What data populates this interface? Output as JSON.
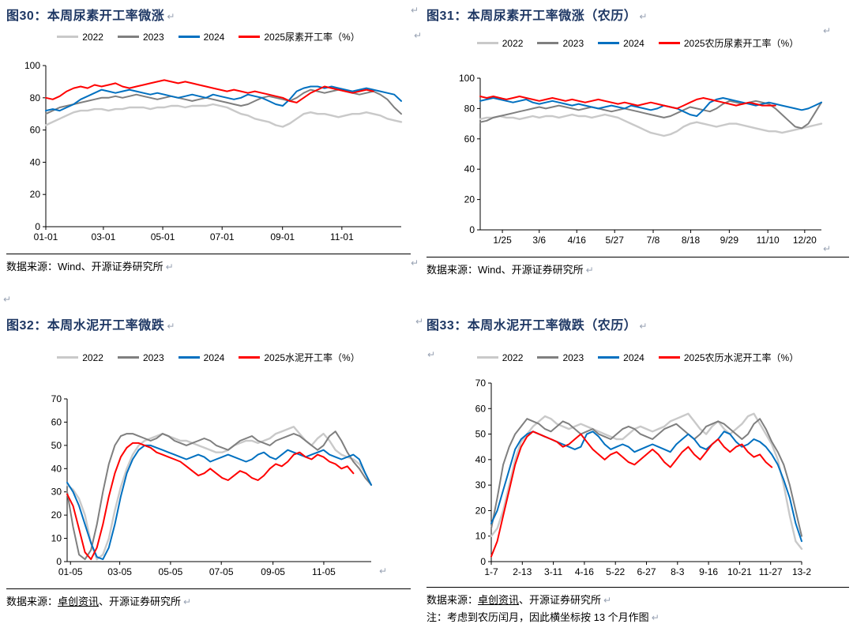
{
  "marks": {
    "return": "↵"
  },
  "colors": {
    "title": "#1f3864",
    "axis": "#000000",
    "series_2022": "#c9c9c9",
    "series_2023": "#7f7f7f",
    "series_2024": "#0070c0",
    "series_2025": "#ff0000"
  },
  "chart_data": [
    {
      "type": "line",
      "title": "图30：本周尿素开工率微涨",
      "grid": false,
      "legend_position": "top",
      "ylim": [
        0,
        100
      ],
      "yticks": [
        0,
        20,
        40,
        60,
        80,
        100
      ],
      "n": 52,
      "xlabels": [
        "01-01",
        "03-01",
        "05-01",
        "07-01",
        "09-01",
        "11-01"
      ],
      "xlabel_pos": [
        0,
        0.162,
        0.329,
        0.496,
        0.666,
        0.833
      ],
      "source": {
        "prefix": "数据来源：",
        "link": "",
        "rest": "Wind、开源证券研究所"
      },
      "series": [
        {
          "name": "2022",
          "color": "#c9c9c9",
          "width": 2.4,
          "values": [
            63,
            65,
            67,
            69,
            71,
            72,
            72,
            73,
            73,
            72,
            73,
            73,
            74,
            74,
            74,
            73,
            74,
            74,
            75,
            75,
            74,
            75,
            75,
            75,
            76,
            75,
            74,
            72,
            70,
            69,
            67,
            66,
            65,
            63,
            62,
            64,
            67,
            70,
            71,
            70,
            70,
            69,
            68,
            69,
            70,
            70,
            71,
            70,
            69,
            67,
            66,
            65
          ]
        },
        {
          "name": "2023",
          "color": "#7f7f7f",
          "width": 2,
          "values": [
            70,
            72,
            74,
            75,
            76,
            77,
            78,
            79,
            80,
            80,
            81,
            80,
            81,
            82,
            81,
            80,
            79,
            80,
            81,
            80,
            79,
            78,
            79,
            80,
            79,
            78,
            77,
            76,
            75,
            76,
            78,
            80,
            81,
            80,
            79,
            78,
            80,
            83,
            85,
            84,
            83,
            84,
            85,
            84,
            83,
            82,
            83,
            84,
            82,
            79,
            74,
            70
          ]
        },
        {
          "name": "2024",
          "color": "#0070c0",
          "width": 2,
          "values": [
            72,
            73,
            72,
            74,
            76,
            79,
            81,
            83,
            85,
            84,
            83,
            84,
            85,
            84,
            83,
            82,
            83,
            82,
            81,
            80,
            81,
            82,
            81,
            80,
            82,
            81,
            80,
            79,
            80,
            82,
            81,
            80,
            78,
            76,
            75,
            79,
            84,
            86,
            87,
            87,
            86,
            87,
            86,
            85,
            84,
            85,
            86,
            85,
            84,
            83,
            82,
            78
          ]
        },
        {
          "name": "2025尿素开工率（%）",
          "color": "#ff0000",
          "width": 2,
          "values": [
            80,
            79,
            81,
            84,
            86,
            87,
            86,
            88,
            87,
            88,
            89,
            87,
            86,
            87,
            88,
            89,
            90,
            91,
            90,
            89,
            90,
            89,
            88,
            87,
            86,
            85,
            84,
            85,
            84,
            83,
            84,
            83,
            82,
            81,
            80,
            78,
            77,
            80,
            83,
            85,
            87,
            86,
            85,
            84,
            83,
            84,
            85,
            84
          ]
        }
      ]
    },
    {
      "type": "line",
      "title": "图31：本周尿素开工率微涨（农历）",
      "grid": false,
      "legend_position": "top",
      "ylim": [
        0,
        100
      ],
      "yticks": [
        0,
        20,
        40,
        60,
        80,
        100
      ],
      "n": 53,
      "xlabels": [
        "1/25",
        "3/6",
        "4/16",
        "5/27",
        "7/8",
        "8/18",
        "9/29",
        "11/10",
        "12/20"
      ],
      "xlabel_pos": [
        0.065,
        0.173,
        0.283,
        0.394,
        0.507,
        0.617,
        0.73,
        0.843,
        0.951
      ],
      "source": {
        "prefix": "数据来源：",
        "link": "",
        "rest": "Wind、开源证券研究所"
      },
      "series": [
        {
          "name": "2022",
          "color": "#c9c9c9",
          "width": 2.4,
          "values": [
            73,
            74,
            74,
            75,
            74,
            74,
            73,
            74,
            75,
            74,
            75,
            75,
            74,
            75,
            76,
            75,
            75,
            74,
            75,
            76,
            75,
            74,
            72,
            70,
            68,
            66,
            64,
            63,
            62,
            63,
            65,
            68,
            70,
            71,
            70,
            69,
            68,
            69,
            70,
            70,
            69,
            68,
            67,
            66,
            65,
            65,
            64,
            65,
            66,
            67,
            68,
            69,
            70
          ]
        },
        {
          "name": "2023",
          "color": "#7f7f7f",
          "width": 2,
          "values": [
            71,
            72,
            74,
            75,
            76,
            77,
            78,
            79,
            80,
            81,
            80,
            81,
            82,
            81,
            80,
            79,
            80,
            81,
            80,
            79,
            78,
            79,
            80,
            79,
            78,
            77,
            76,
            75,
            74,
            75,
            77,
            79,
            81,
            80,
            79,
            78,
            80,
            83,
            85,
            84,
            83,
            84,
            85,
            84,
            83,
            80,
            76,
            72,
            68,
            67,
            70,
            77,
            84
          ]
        },
        {
          "name": "2024",
          "color": "#0070c0",
          "width": 2,
          "values": [
            85,
            86,
            87,
            86,
            85,
            84,
            85,
            86,
            84,
            83,
            84,
            85,
            84,
            83,
            82,
            83,
            82,
            81,
            80,
            81,
            82,
            81,
            80,
            82,
            81,
            80,
            79,
            80,
            82,
            81,
            80,
            78,
            76,
            75,
            79,
            84,
            86,
            87,
            86,
            85,
            84,
            83,
            82,
            83,
            84,
            83,
            82,
            81,
            80,
            79,
            80,
            82,
            84
          ]
        },
        {
          "name": "2025农历尿素开工率（%）",
          "color": "#ff0000",
          "width": 2,
          "values": [
            88,
            87,
            88,
            87,
            86,
            87,
            88,
            87,
            86,
            85,
            86,
            87,
            86,
            85,
            86,
            85,
            84,
            85,
            86,
            85,
            84,
            83,
            84,
            83,
            82,
            83,
            84,
            83,
            82,
            81,
            80,
            82,
            84,
            86,
            87,
            86,
            85,
            84,
            83,
            82,
            83,
            84,
            83,
            82,
            82,
            82
          ]
        }
      ]
    },
    {
      "type": "line",
      "title": "图32：本周水泥开工率微跌",
      "grid": false,
      "legend_position": "top",
      "ylim": [
        0,
        70
      ],
      "yticks": [
        0,
        10,
        20,
        30,
        40,
        50,
        60,
        70
      ],
      "n": 52,
      "xlabels": [
        "01-05",
        "03-05",
        "05-05",
        "07-05",
        "09-05",
        "11-05"
      ],
      "xlabel_pos": [
        0.011,
        0.173,
        0.34,
        0.507,
        0.677,
        0.844
      ],
      "source": {
        "prefix": "数据来源：",
        "link": "卓创资讯",
        "rest": "、开源证券研究所"
      },
      "series": [
        {
          "name": "2022",
          "color": "#c9c9c9",
          "width": 2.4,
          "values": [
            33,
            31,
            27,
            20,
            8,
            1,
            3,
            10,
            22,
            32,
            40,
            46,
            50,
            52,
            53,
            54,
            55,
            54,
            53,
            52,
            52,
            51,
            50,
            49,
            48,
            47,
            47,
            48,
            50,
            51,
            52,
            52,
            51,
            52,
            53,
            55,
            56,
            57,
            58,
            55,
            52,
            50,
            53,
            55,
            52,
            48,
            46,
            45,
            44,
            42,
            38,
            33
          ]
        },
        {
          "name": "2023",
          "color": "#7f7f7f",
          "width": 2,
          "values": [
            30,
            15,
            3,
            1,
            5,
            16,
            30,
            42,
            50,
            54,
            55,
            55,
            54,
            53,
            52,
            53,
            55,
            54,
            52,
            51,
            50,
            51,
            52,
            53,
            52,
            50,
            49,
            48,
            50,
            52,
            53,
            54,
            52,
            51,
            50,
            52,
            53,
            54,
            55,
            54,
            52,
            50,
            48,
            50,
            54,
            56,
            52,
            47,
            43,
            40,
            36,
            33
          ]
        },
        {
          "name": "2024",
          "color": "#0070c0",
          "width": 2,
          "values": [
            34,
            30,
            24,
            16,
            8,
            2,
            1,
            6,
            16,
            28,
            38,
            44,
            48,
            50,
            50,
            49,
            48,
            47,
            46,
            45,
            44,
            45,
            46,
            45,
            43,
            44,
            45,
            46,
            45,
            44,
            43,
            44,
            46,
            47,
            45,
            44,
            46,
            48,
            47,
            46,
            45,
            46,
            47,
            48,
            46,
            45,
            44,
            45,
            46,
            44,
            38,
            33
          ]
        },
        {
          "name": "2025水泥开工率（%）",
          "color": "#ff0000",
          "width": 2,
          "values": [
            29,
            24,
            14,
            4,
            1,
            6,
            16,
            28,
            38,
            45,
            49,
            51,
            51,
            50,
            49,
            47,
            46,
            45,
            44,
            43,
            41,
            39,
            37,
            38,
            40,
            38,
            36,
            35,
            37,
            39,
            38,
            36,
            35,
            37,
            40,
            42,
            41,
            43,
            46,
            47,
            45,
            44,
            46,
            45,
            43,
            42,
            40,
            41,
            38
          ]
        }
      ]
    },
    {
      "type": "line",
      "title": "图33：本周水泥开工率微跌（农历）",
      "grid": false,
      "legend_position": "top",
      "ylim": [
        0,
        70
      ],
      "yticks": [
        0,
        10,
        20,
        30,
        40,
        50,
        60,
        70
      ],
      "n": 53,
      "xlabels": [
        "1-7",
        "2-13",
        "3-11",
        "4-16",
        "5-22",
        "6-27",
        "8-3",
        "9-16",
        "10-21",
        "11-27",
        "13-2"
      ],
      "xlabel_pos": [
        0,
        0.1,
        0.2,
        0.3,
        0.4,
        0.5,
        0.6,
        0.7,
        0.8,
        0.9,
        1
      ],
      "source": {
        "prefix": "数据来源：",
        "link": "卓创资讯",
        "rest": "、开源证券研究所"
      },
      "note": "注：考虑到农历闰月，因此横坐标按 13 个月作图",
      "series": [
        {
          "name": "2022",
          "color": "#c9c9c9",
          "width": 2.4,
          "values": [
            10,
            13,
            20,
            30,
            40,
            47,
            50,
            53,
            55,
            57,
            56,
            54,
            53,
            52,
            53,
            54,
            53,
            52,
            51,
            50,
            49,
            48,
            48,
            50,
            52,
            53,
            52,
            51,
            52,
            53,
            55,
            56,
            57,
            58,
            55,
            52,
            50,
            53,
            55,
            52,
            50,
            52,
            54,
            57,
            58,
            54,
            50,
            46,
            40,
            30,
            18,
            8,
            5
          ]
        },
        {
          "name": "2023",
          "color": "#7f7f7f",
          "width": 2,
          "values": [
            13,
            25,
            38,
            45,
            50,
            53,
            56,
            55,
            54,
            52,
            51,
            53,
            55,
            54,
            52,
            50,
            51,
            52,
            50,
            49,
            48,
            50,
            52,
            53,
            52,
            50,
            49,
            48,
            50,
            52,
            53,
            54,
            52,
            50,
            48,
            50,
            53,
            54,
            55,
            54,
            52,
            50,
            48,
            50,
            54,
            56,
            52,
            47,
            43,
            38,
            30,
            20,
            10
          ]
        },
        {
          "name": "2024",
          "color": "#0070c0",
          "width": 2,
          "values": [
            15,
            20,
            28,
            36,
            44,
            48,
            50,
            51,
            50,
            49,
            48,
            47,
            46,
            45,
            44,
            45,
            50,
            51,
            49,
            46,
            44,
            45,
            46,
            45,
            43,
            44,
            45,
            46,
            45,
            44,
            43,
            46,
            48,
            50,
            48,
            45,
            44,
            46,
            48,
            51,
            50,
            47,
            45,
            46,
            48,
            47,
            45,
            42,
            38,
            32,
            25,
            15,
            8
          ]
        },
        {
          "name": "2025农历水泥开工率（%）",
          "color": "#ff0000",
          "width": 2,
          "values": [
            2,
            8,
            18,
            28,
            38,
            45,
            49,
            51,
            50,
            49,
            48,
            47,
            45,
            46,
            48,
            50,
            47,
            44,
            42,
            40,
            42,
            43,
            41,
            39,
            38,
            40,
            42,
            44,
            42,
            39,
            37,
            40,
            43,
            45,
            42,
            40,
            43,
            46,
            48,
            45,
            43,
            45,
            46,
            43,
            41,
            42,
            39,
            37
          ]
        }
      ]
    }
  ]
}
